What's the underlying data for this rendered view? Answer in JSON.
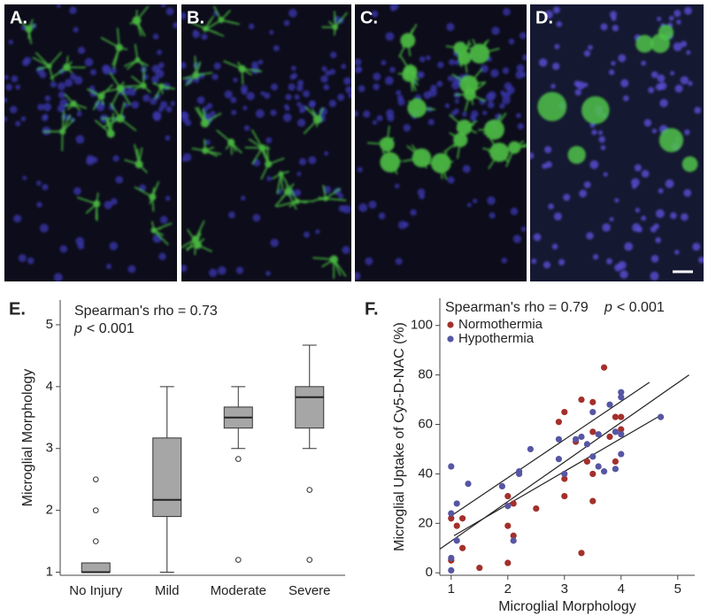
{
  "image_panels": [
    {
      "label": "A."
    },
    {
      "label": "B."
    },
    {
      "label": "C."
    },
    {
      "label": "D."
    }
  ],
  "chart_data": [
    {
      "type": "box",
      "panel_label": "E.",
      "annotation": {
        "stat": "Spearman's rho = 0.73",
        "p_symbol": "p",
        "p_value": "< 0.001"
      },
      "y_label": "Microglial Morphology",
      "categories": [
        "No Injury",
        "Mild",
        "Moderate",
        "Severe"
      ],
      "boxes": [
        {
          "min": 1,
          "q1": 1,
          "median": 1,
          "q3": 1.15,
          "max": 1.15,
          "outliers": [
            1.5,
            2,
            2.5
          ]
        },
        {
          "min": 1,
          "q1": 1.9,
          "median": 2.17,
          "q3": 3.17,
          "max": 4,
          "outliers": []
        },
        {
          "min": 3,
          "q1": 3.33,
          "median": 3.5,
          "q3": 3.67,
          "max": 4,
          "outliers": [
            2.83,
            1.2
          ]
        },
        {
          "min": 3,
          "q1": 3.33,
          "median": 3.83,
          "q3": 4,
          "max": 4.67,
          "outliers": [
            2.33,
            1.2
          ]
        }
      ],
      "color": "#a6a6a6",
      "ylim": [
        0.95,
        5.4
      ],
      "yticks": [
        1,
        2,
        3,
        4,
        5
      ]
    },
    {
      "type": "scatter",
      "panel_label": "F.",
      "annotation": {
        "stat": "Spearman's rho = 0.79",
        "p_symbol": "p",
        "p_value": "< 0.001"
      },
      "x_label": "Microglial Morphology",
      "y_label": "Microglial Uptake of Cy5-D-NAC (%)",
      "legend": "upper left",
      "series": [
        {
          "name": "Normothermia",
          "color": "#a3302b",
          "x": [
            1.0,
            1.0,
            1.1,
            1.2,
            1.2,
            1.5,
            2.0,
            2.0,
            2.0,
            2.1,
            2.1,
            2.5,
            2.9,
            3.0,
            3.0,
            3.0,
            3.2,
            3.3,
            3.3,
            3.4,
            3.5,
            3.5,
            3.5,
            3.5,
            3.7,
            3.8,
            3.9,
            3.9,
            4.0,
            4.0
          ],
          "values": [
            5,
            22,
            19,
            22,
            10,
            2,
            4,
            19,
            31,
            15,
            28,
            26,
            61,
            65,
            38,
            31,
            53,
            70,
            8,
            45,
            40,
            57,
            69,
            29,
            83,
            55,
            63,
            45,
            63,
            58
          ]
        },
        {
          "name": "Hypothermia",
          "color": "#5656a3",
          "x": [
            1.0,
            1.0,
            1.0,
            1.0,
            1.1,
            1.1,
            1.3,
            1.9,
            2.0,
            2.1,
            2.2,
            2.2,
            2.4,
            2.9,
            2.9,
            3.0,
            3.2,
            3.3,
            3.4,
            3.5,
            3.5,
            3.6,
            3.6,
            3.7,
            3.8,
            3.9,
            3.9,
            4.0,
            4.0,
            4.0,
            4.0,
            4.7
          ],
          "values": [
            43,
            24,
            6,
            1,
            28,
            13,
            36,
            35,
            27,
            13,
            41,
            40,
            50,
            54,
            46,
            40,
            54,
            55,
            52,
            65,
            47,
            43,
            56,
            41,
            68,
            57,
            42,
            73,
            71,
            56,
            48,
            63
          ]
        }
      ],
      "lines": [
        {
          "x": [
            0.8,
            5.2
          ],
          "y": [
            9.6,
            80
          ]
        },
        {
          "x": [
            1.0,
            4.5
          ],
          "y": [
            23,
            77
          ]
        },
        {
          "x": [
            1.05,
            4.65
          ],
          "y": [
            15,
            63
          ]
        }
      ],
      "xlim": [
        0.8,
        5.3
      ],
      "ylim": [
        -1,
        111
      ],
      "xticks": [
        1,
        2,
        3,
        4,
        5
      ],
      "yticks": [
        0,
        20,
        40,
        60,
        80,
        100
      ]
    }
  ]
}
